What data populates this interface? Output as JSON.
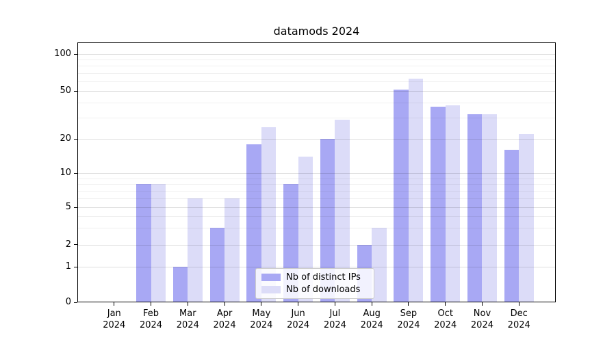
{
  "title": "datamods 2024",
  "chart_data": {
    "type": "bar",
    "title": "datamods 2024",
    "categories": [
      "Jan 2024",
      "Feb 2024",
      "Mar 2024",
      "Apr 2024",
      "May 2024",
      "Jun 2024",
      "Jul 2024",
      "Aug 2024",
      "Sep 2024",
      "Oct 2024",
      "Nov 2024",
      "Dec 2024"
    ],
    "series": [
      {
        "name": "Nb of distinct IPs",
        "key": "ips",
        "color": "#a8a8f4",
        "values": [
          0,
          8,
          1,
          3,
          18,
          8,
          20,
          2,
          51,
          37,
          32,
          16
        ]
      },
      {
        "name": "Nb of downloads",
        "key": "downloads",
        "color": "#dcdcf8",
        "values": [
          0,
          8,
          6,
          6,
          25,
          14,
          29,
          3,
          63,
          38,
          32,
          22
        ]
      }
    ],
    "yscale": "symlog",
    "y_ticks": [
      0,
      1,
      2,
      5,
      10,
      20,
      50,
      100
    ],
    "y_minor_ticks": [
      3,
      4,
      6,
      7,
      8,
      9,
      30,
      40,
      60,
      70,
      80,
      90
    ],
    "ylim": [
      0,
      125
    ],
    "grid": true,
    "legend_position": "lower center",
    "xlabel": "",
    "ylabel": ""
  },
  "legend": {
    "items": [
      "Nb of distinct IPs",
      "Nb of downloads"
    ]
  },
  "colors": {
    "background": "#ffffff",
    "spine": "#000000",
    "major_grid": "rgba(0,0,0,0.13)",
    "minor_grid": "rgba(0,0,0,0.06)",
    "bar_ips": "#a8a8f4",
    "bar_downloads": "#dcdcf8",
    "text": "#000000"
  }
}
